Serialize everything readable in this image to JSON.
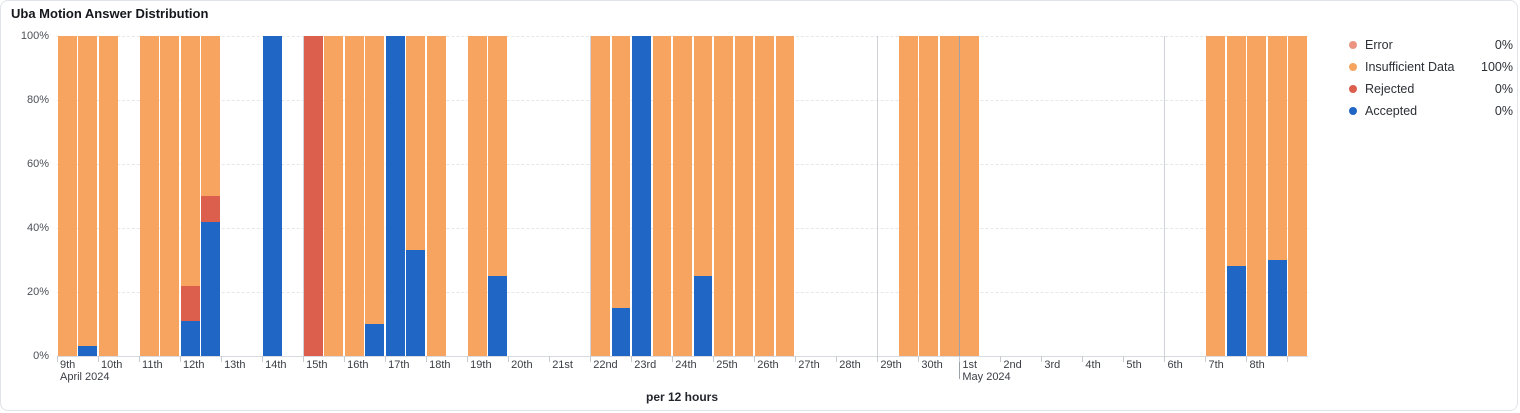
{
  "card": {
    "title": "Uba Motion Answer Distribution",
    "xaxis_title": "per 12 hours"
  },
  "legend": [
    {
      "name": "Error",
      "value": "0%",
      "color": "#EB9482"
    },
    {
      "name": "Insufficient Data",
      "value": "100%",
      "color": "#F6A45F"
    },
    {
      "name": "Rejected",
      "value": "0%",
      "color": "#DC5E4D"
    },
    {
      "name": "Accepted",
      "value": "0%",
      "color": "#2066C5"
    }
  ],
  "chart_data": {
    "type": "bar",
    "stacked": true,
    "interval": "per 12 hours",
    "title": "Uba Motion Answer Distribution",
    "xlabel": "per 12 hours",
    "ylabel": "",
    "ylim": [
      0,
      100
    ],
    "yticks": [
      0,
      20,
      40,
      60,
      80,
      100
    ],
    "grid": "horizontal-dashed",
    "legend_position": "right",
    "series_colors": {
      "error": "#EB9482",
      "insufficient": "#F6A45F",
      "rejected": "#DC5E4D",
      "accepted": "#2066C5"
    },
    "x_days": [
      {
        "label": "9th",
        "sub": "April 2024"
      },
      {
        "label": "10th"
      },
      {
        "label": "11th"
      },
      {
        "label": "12th"
      },
      {
        "label": "13th"
      },
      {
        "label": "14th"
      },
      {
        "label": "15th",
        "week_line": true
      },
      {
        "label": "16th"
      },
      {
        "label": "17th"
      },
      {
        "label": "18th"
      },
      {
        "label": "19th"
      },
      {
        "label": "20th"
      },
      {
        "label": "21st"
      },
      {
        "label": "22nd",
        "week_line": true
      },
      {
        "label": "23rd"
      },
      {
        "label": "24th"
      },
      {
        "label": "25th"
      },
      {
        "label": "26th"
      },
      {
        "label": "27th"
      },
      {
        "label": "28th"
      },
      {
        "label": "29th",
        "week_line": true
      },
      {
        "label": "30th"
      },
      {
        "label": "1st",
        "sub": "May 2024",
        "month_line": true
      },
      {
        "label": "2nd"
      },
      {
        "label": "3rd"
      },
      {
        "label": "4th"
      },
      {
        "label": "5th"
      },
      {
        "label": "6th",
        "week_line": true
      },
      {
        "label": "7th"
      },
      {
        "label": "8th"
      },
      {
        "label": ""
      }
    ],
    "bars_note": "slot = half-day index from April 9 AM; values are stacked percentages: a=accepted, r=rejected, i=insufficient data, e=error",
    "bars": [
      {
        "slot": 0,
        "a": 0,
        "r": 0,
        "i": 100,
        "e": 0
      },
      {
        "slot": 1,
        "a": 3,
        "r": 0,
        "i": 97,
        "e": 0
      },
      {
        "slot": 2,
        "a": 0,
        "r": 0,
        "i": 100,
        "e": 0
      },
      {
        "slot": 4,
        "a": 0,
        "r": 0,
        "i": 100,
        "e": 0
      },
      {
        "slot": 5,
        "a": 0,
        "r": 0,
        "i": 100,
        "e": 0
      },
      {
        "slot": 6,
        "a": 11,
        "r": 11,
        "i": 78,
        "e": 0
      },
      {
        "slot": 7,
        "a": 42,
        "r": 8,
        "i": 50,
        "e": 0
      },
      {
        "slot": 10,
        "a": 100,
        "r": 0,
        "i": 0,
        "e": 0
      },
      {
        "slot": 12,
        "a": 0,
        "r": 100,
        "i": 0,
        "e": 0
      },
      {
        "slot": 13,
        "a": 0,
        "r": 0,
        "i": 100,
        "e": 0
      },
      {
        "slot": 14,
        "a": 0,
        "r": 0,
        "i": 100,
        "e": 0
      },
      {
        "slot": 15,
        "a": 10,
        "r": 0,
        "i": 90,
        "e": 0
      },
      {
        "slot": 16,
        "a": 100,
        "r": 0,
        "i": 0,
        "e": 0
      },
      {
        "slot": 17,
        "a": 33,
        "r": 0,
        "i": 67,
        "e": 0
      },
      {
        "slot": 18,
        "a": 0,
        "r": 0,
        "i": 100,
        "e": 0
      },
      {
        "slot": 20,
        "a": 0,
        "r": 0,
        "i": 100,
        "e": 0
      },
      {
        "slot": 21,
        "a": 25,
        "r": 0,
        "i": 75,
        "e": 0
      },
      {
        "slot": 26,
        "a": 0,
        "r": 0,
        "i": 100,
        "e": 0
      },
      {
        "slot": 27,
        "a": 15,
        "r": 0,
        "i": 85,
        "e": 0
      },
      {
        "slot": 28,
        "a": 100,
        "r": 0,
        "i": 0,
        "e": 0
      },
      {
        "slot": 29,
        "a": 0,
        "r": 0,
        "i": 100,
        "e": 0
      },
      {
        "slot": 30,
        "a": 0,
        "r": 0,
        "i": 100,
        "e": 0
      },
      {
        "slot": 31,
        "a": 25,
        "r": 0,
        "i": 75,
        "e": 0
      },
      {
        "slot": 32,
        "a": 0,
        "r": 0,
        "i": 100,
        "e": 0
      },
      {
        "slot": 33,
        "a": 0,
        "r": 0,
        "i": 100,
        "e": 0
      },
      {
        "slot": 34,
        "a": 0,
        "r": 0,
        "i": 100,
        "e": 0
      },
      {
        "slot": 35,
        "a": 0,
        "r": 0,
        "i": 100,
        "e": 0
      },
      {
        "slot": 41,
        "a": 0,
        "r": 0,
        "i": 100,
        "e": 0
      },
      {
        "slot": 42,
        "a": 0,
        "r": 0,
        "i": 100,
        "e": 0
      },
      {
        "slot": 43,
        "a": 0,
        "r": 0,
        "i": 100,
        "e": 0
      },
      {
        "slot": 44,
        "a": 0,
        "r": 0,
        "i": 100,
        "e": 0
      },
      {
        "slot": 56,
        "a": 0,
        "r": 0,
        "i": 100,
        "e": 0
      },
      {
        "slot": 57,
        "a": 28,
        "r": 0,
        "i": 72,
        "e": 0
      },
      {
        "slot": 58,
        "a": 0,
        "r": 0,
        "i": 100,
        "e": 0
      },
      {
        "slot": 59,
        "a": 30,
        "r": 0,
        "i": 70,
        "e": 0
      },
      {
        "slot": 60,
        "a": 0,
        "r": 0,
        "i": 100,
        "e": 0
      }
    ]
  }
}
